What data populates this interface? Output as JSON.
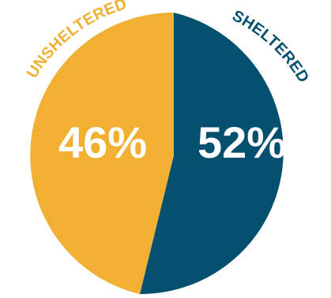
{
  "chart_data": {
    "type": "pie",
    "slices": [
      {
        "label": "SHELTERED",
        "value": 52,
        "display": "52%",
        "color": "#04506e"
      },
      {
        "label": "UNSHELTERED",
        "value": 46,
        "display": "46%",
        "color": "#f2b032"
      }
    ]
  }
}
